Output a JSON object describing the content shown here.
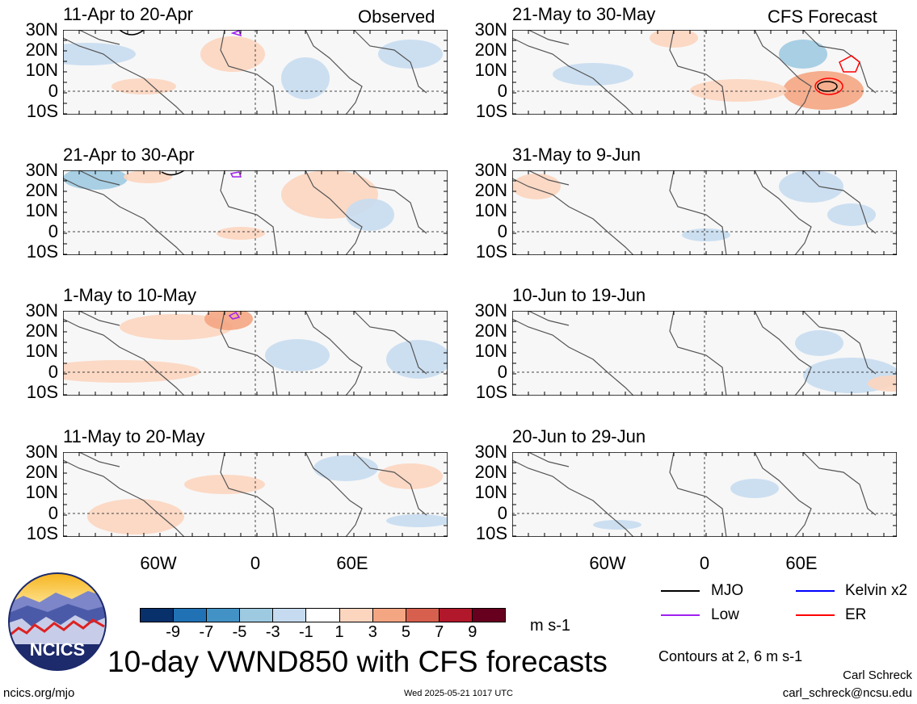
{
  "headers": {
    "observed": "Observed",
    "forecast": "CFS Forecast"
  },
  "lat_labels": [
    "30N",
    "20N",
    "10N",
    "0",
    "10S"
  ],
  "lon_labels": [
    "60W",
    "0",
    "60E"
  ],
  "panels": [
    {
      "title": "11-Apr to 20-Apr",
      "column": "observed"
    },
    {
      "title": "21-Apr to 30-Apr",
      "column": "observed"
    },
    {
      "title": "1-May to 10-May",
      "column": "observed"
    },
    {
      "title": "11-May to 20-May",
      "column": "observed"
    },
    {
      "title": "21-May to 30-May",
      "column": "forecast"
    },
    {
      "title": "31-May to 9-Jun",
      "column": "forecast"
    },
    {
      "title": "10-Jun to 19-Jun",
      "column": "forecast"
    },
    {
      "title": "20-Jun to 29-Jun",
      "column": "forecast"
    }
  ],
  "colorbar": {
    "ticks": [
      "-9",
      "-7",
      "-5",
      "-3",
      "-1",
      "1",
      "3",
      "5",
      "7",
      "9"
    ],
    "colors": [
      "#08306b",
      "#2171b5",
      "#4292c6",
      "#9ecae1",
      "#c6dbef",
      "#ffffff",
      "#fcd5bf",
      "#f4a582",
      "#d6604d",
      "#b2182b",
      "#67001f"
    ],
    "units": "m s-1"
  },
  "legend": {
    "items": [
      {
        "label": "MJO",
        "color": "#000000"
      },
      {
        "label": "Kelvin x2",
        "color": "#0000ff"
      },
      {
        "label": "Low",
        "color": "#a020f0"
      },
      {
        "label": "ER",
        "color": "#ff0000"
      }
    ],
    "contours_note": "Contours at 2, 6 m s-1"
  },
  "title": "10-day VWND850 with CFS forecasts",
  "logo_text": "NCICS",
  "footer": {
    "url": "ncics.org/mjo",
    "timestamp": "Wed 2025-05-21 1017 UTC",
    "author": "Carl Schreck",
    "email": "carl_schreck@ncsu.edu"
  }
}
